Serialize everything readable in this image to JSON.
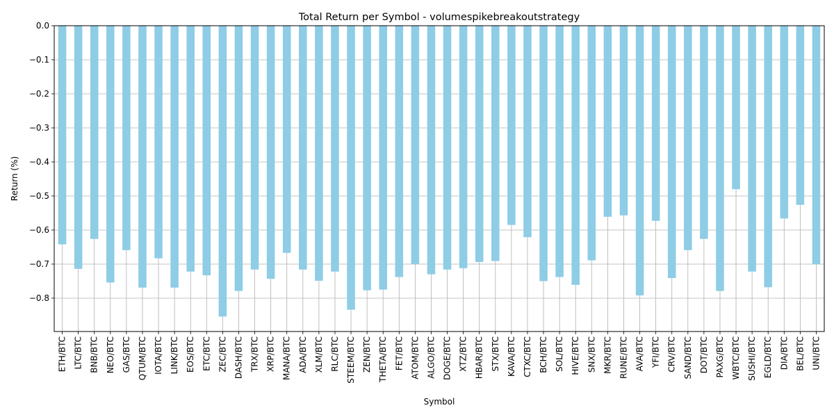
{
  "chart_data": {
    "type": "bar",
    "title": "Total Return per Symbol - volumespikebreakoutstrategy",
    "xlabel": "Symbol",
    "ylabel": "Return (%)",
    "ylim": [
      -0.898,
      0.0
    ],
    "yticks": [
      0.0,
      -0.1,
      -0.2,
      -0.3,
      -0.4,
      -0.5,
      -0.6,
      -0.7,
      -0.8
    ],
    "ytick_labels": [
      "0.0",
      "−0.1",
      "−0.2",
      "−0.3",
      "−0.4",
      "−0.5",
      "−0.6",
      "−0.7",
      "−0.8"
    ],
    "grid": true,
    "bar_color": "#8ecde5",
    "grid_color": "#b0b0b0",
    "categories": [
      "ETH/BTC",
      "LTC/BTC",
      "BNB/BTC",
      "NEO/BTC",
      "GAS/BTC",
      "QTUM/BTC",
      "IOTA/BTC",
      "LINK/BTC",
      "EOS/BTC",
      "ETC/BTC",
      "ZEC/BTC",
      "DASH/BTC",
      "TRX/BTC",
      "XRP/BTC",
      "MANA/BTC",
      "ADA/BTC",
      "XLM/BTC",
      "RLC/BTC",
      "STEEM/BTC",
      "ZEN/BTC",
      "THETA/BTC",
      "FET/BTC",
      "ATOM/BTC",
      "ALGO/BTC",
      "DOGE/BTC",
      "XTZ/BTC",
      "HBAR/BTC",
      "STX/BTC",
      "KAVA/BTC",
      "CTXC/BTC",
      "BCH/BTC",
      "SOL/BTC",
      "HIVE/BTC",
      "SNX/BTC",
      "MKR/BTC",
      "RUNE/BTC",
      "AVA/BTC",
      "YFI/BTC",
      "CRV/BTC",
      "SAND/BTC",
      "DOT/BTC",
      "PAXG/BTC",
      "WBTC/BTC",
      "SUSHI/BTC",
      "EGLD/BTC",
      "DIA/BTC",
      "BEL/BTC",
      "UNI/BTC"
    ],
    "values": [
      -0.642,
      -0.714,
      -0.626,
      -0.754,
      -0.659,
      -0.769,
      -0.683,
      -0.769,
      -0.722,
      -0.733,
      -0.854,
      -0.779,
      -0.716,
      -0.743,
      -0.667,
      -0.716,
      -0.749,
      -0.722,
      -0.834,
      -0.777,
      -0.775,
      -0.738,
      -0.7,
      -0.73,
      -0.716,
      -0.712,
      -0.694,
      -0.691,
      -0.585,
      -0.621,
      -0.75,
      -0.738,
      -0.761,
      -0.689,
      -0.561,
      -0.557,
      -0.792,
      -0.573,
      -0.741,
      -0.659,
      -0.626,
      -0.779,
      -0.48,
      -0.722,
      -0.768,
      -0.566,
      -0.526,
      -0.701
    ]
  }
}
